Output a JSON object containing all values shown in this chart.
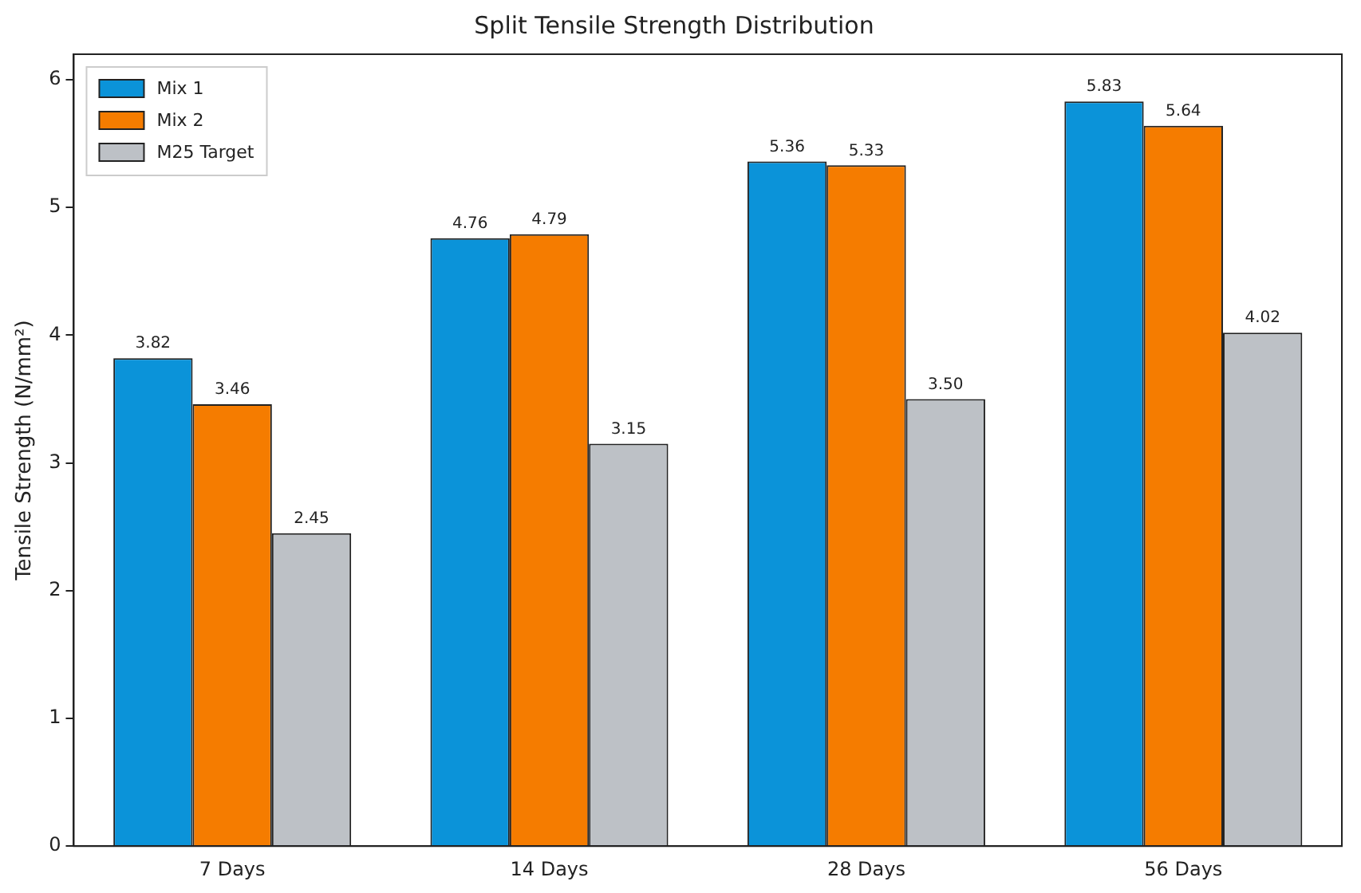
{
  "chart_data": {
    "type": "bar",
    "title": "Split Tensile Strength Distribution",
    "ylabel": "Tensile Strength (N/mm²)",
    "categories": [
      "7 Days",
      "14 Days",
      "28 Days",
      "56 Days"
    ],
    "series": [
      {
        "name": "Mix 1",
        "color": "#0b93d9",
        "values": [
          3.82,
          4.76,
          5.36,
          5.83
        ],
        "value_labels": [
          "3.82",
          "4.76",
          "5.36",
          "5.83"
        ]
      },
      {
        "name": "Mix 2",
        "color": "#f57c00",
        "values": [
          3.46,
          4.79,
          5.33,
          5.64
        ],
        "value_labels": [
          "3.46",
          "4.79",
          "5.33",
          "5.64"
        ]
      },
      {
        "name": "M25 Target",
        "color": "#bdc1c6",
        "values": [
          2.45,
          3.15,
          3.5,
          4.02
        ],
        "value_labels": [
          "2.45",
          "3.15",
          "3.50",
          "4.02"
        ]
      }
    ],
    "ylim": [
      0,
      6.2
    ],
    "yticks": [
      0,
      1,
      2,
      3,
      4,
      5,
      6
    ],
    "grid": false,
    "legend": "top left"
  }
}
